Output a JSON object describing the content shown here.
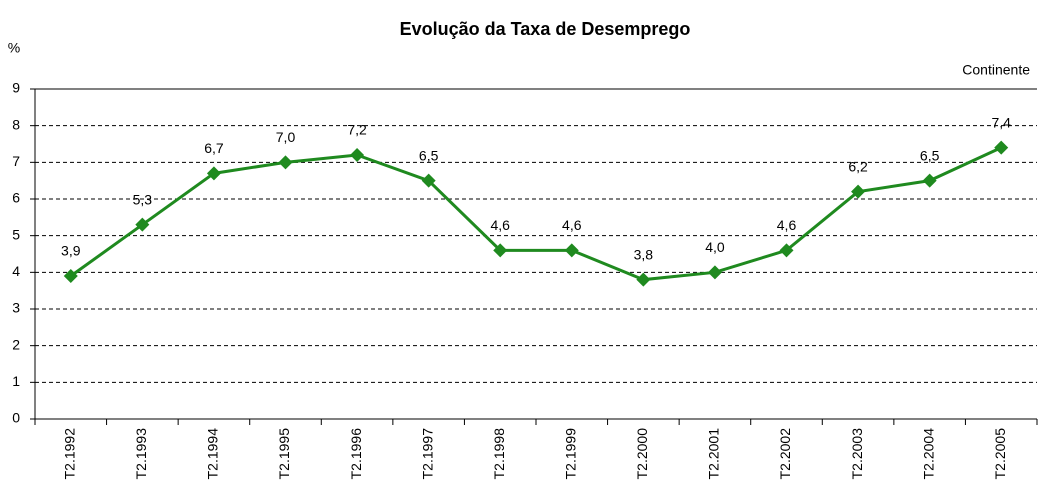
{
  "chart_data": {
    "type": "line",
    "title": "Evolução da Taxa de Desemprego",
    "y_label": "%",
    "categories": [
      "T2.1992",
      "T2.1993",
      "T2.1994",
      "T2.1995",
      "T2.1996",
      "T2.1997",
      "T2.1998",
      "T2.1999",
      "T2.2000",
      "T2.2001",
      "T2.2002",
      "T2.2003",
      "T2.2004",
      "T2.2005"
    ],
    "series": [
      {
        "name": "Continente",
        "color": "#1f8a1f",
        "values": [
          3.9,
          5.3,
          6.7,
          7.0,
          7.2,
          6.5,
          4.6,
          4.6,
          3.8,
          4.0,
          4.6,
          6.2,
          6.5,
          7.4
        ],
        "value_labels": [
          "3,9",
          "5,3",
          "6,7",
          "7,0",
          "7,2",
          "6,5",
          "4,6",
          "4,6",
          "3,8",
          "4,0",
          "4,6",
          "6,2",
          "6,5",
          "7,4"
        ]
      }
    ],
    "ylim": [
      0,
      9
    ],
    "yticks": [
      0,
      1,
      2,
      3,
      4,
      5,
      6,
      7,
      8,
      9
    ],
    "grid": true,
    "legend": "top-right"
  }
}
